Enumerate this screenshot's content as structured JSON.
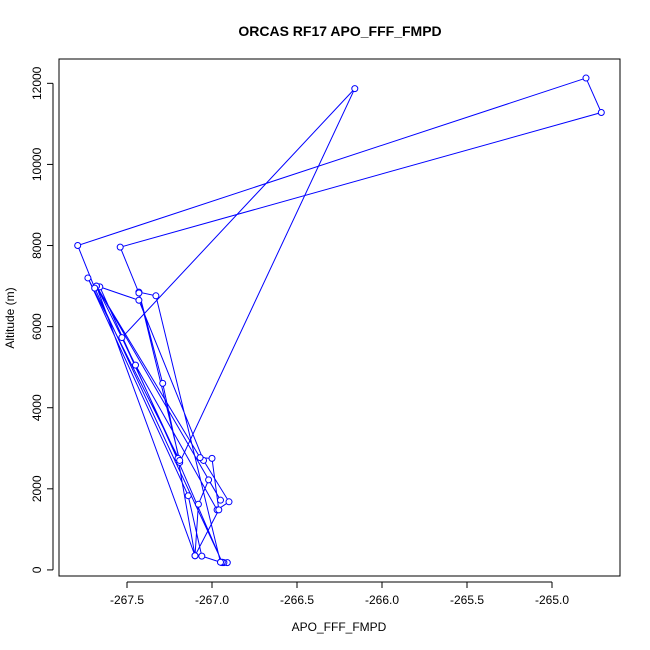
{
  "chart_data": {
    "type": "line",
    "title": "ORCAS RF17 APO_FFF_FMPD",
    "xlabel": "APO_FFF_FMPD",
    "ylabel": "Altitude (m)",
    "xlim": [
      -267.9,
      -264.6
    ],
    "ylim": [
      -150,
      12600
    ],
    "xticks": [
      -267.5,
      -267.0,
      -266.5,
      -266.0,
      -265.5,
      -265.0
    ],
    "xtick_labels": [
      "-267.5",
      "-267.0",
      "-266.5",
      "-266.0",
      "-265.5",
      "-265.0"
    ],
    "yticks": [
      0,
      2000,
      4000,
      6000,
      8000,
      10000,
      12000
    ],
    "ytick_labels": [
      "0",
      "2000",
      "4000",
      "6000",
      "8000",
      "10000",
      "12000"
    ],
    "grid": false,
    "legend": "none",
    "color": "#0000ff",
    "marker": "open-circle",
    "series": [
      {
        "x": [
          -266.91,
          -266.93,
          -266.94,
          -267.2,
          -267.66,
          -267.43,
          -267.05,
          -266.9,
          -266.97,
          -267.45,
          -267.68,
          -267.1,
          -267.08,
          -267.02,
          -266.95,
          -267.68,
          -267.07,
          -267.0,
          -266.96,
          -267.1,
          -267.2,
          -267.53,
          -266.16,
          -267.19,
          -267.29,
          -267.43,
          -267.33,
          -266.95,
          -267.06,
          -267.14,
          -267.73,
          -267.19,
          -267.43,
          -267.54,
          -264.71,
          -264.8,
          -267.79,
          -267.69,
          -266.94,
          -266.95
        ],
        "y": [
          180,
          180,
          180,
          2700,
          6980,
          6650,
          2700,
          1680,
          1480,
          5050,
          7000,
          350,
          1620,
          2220,
          1720,
          7000,
          2770,
          2750,
          1480,
          350,
          2750,
          5730,
          11870,
          2650,
          4600,
          6850,
          6760,
          190,
          340,
          1830,
          7200,
          2700,
          6830,
          7960,
          11280,
          12130,
          8000,
          6950,
          190,
          190
        ]
      }
    ]
  }
}
